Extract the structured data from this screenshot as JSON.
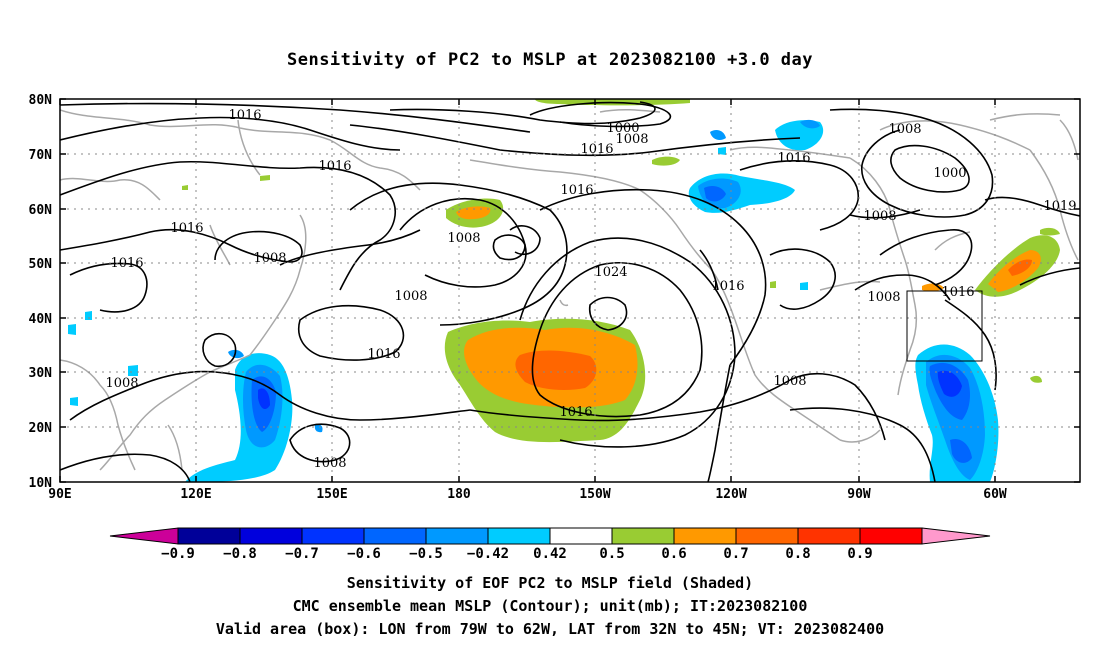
{
  "title": "Sensitivity of PC2 to MSLP at 2023082100 +3.0 day",
  "map": {
    "lon_ticks": [
      "90E",
      "120E",
      "150E",
      "180",
      "150W",
      "120W",
      "90W",
      "60W"
    ],
    "lat_ticks": [
      "80N",
      "70N",
      "60N",
      "50N",
      "40N",
      "30N",
      "20N",
      "10N"
    ],
    "contour_labels": [
      "1016",
      "1016",
      "1016",
      "1016",
      "1008",
      "1016",
      "1008",
      "1008",
      "1024",
      "1016",
      "1016",
      "1016",
      "1008",
      "1000",
      "1008",
      "1016",
      "1008",
      "1000",
      "1016",
      "1008",
      "1016",
      "1008",
      "1008",
      "1008",
      "1019"
    ],
    "colors": {
      "shade_pos_weak": "#99cc33",
      "shade_pos_mid": "#ff9900",
      "shade_pos_strong": "#ff6600",
      "shade_neg_weak": "#00ccff",
      "shade_neg_mid": "#0099ff",
      "shade_neg_strong": "#0033ff",
      "coast": "#a8a8a8",
      "contour": "#000000"
    }
  },
  "colorbar": {
    "labels": [
      "−0.9",
      "−0.8",
      "−0.7",
      "−0.6",
      "−0.5",
      "−0.42",
      "0.42",
      "0.5",
      "0.6",
      "0.7",
      "0.8",
      "0.9"
    ],
    "colors": [
      "#cc0099",
      "#000099",
      "#0000dd",
      "#0033ff",
      "#0066ff",
      "#0099ff",
      "#00ccff",
      "#ffffff",
      "#99cc33",
      "#ff9900",
      "#ff6600",
      "#ff3300",
      "#ff0000",
      "#ff99cc"
    ]
  },
  "captions": {
    "line1": "Sensitivity of EOF PC2 to MSLP field (Shaded)",
    "line2": "CMC ensemble mean MSLP (Contour); unit(mb); IT:2023082100",
    "line3": "Valid area (box): LON from 79W to 62W, LAT from 32N to 45N; VT: 2023082400"
  }
}
